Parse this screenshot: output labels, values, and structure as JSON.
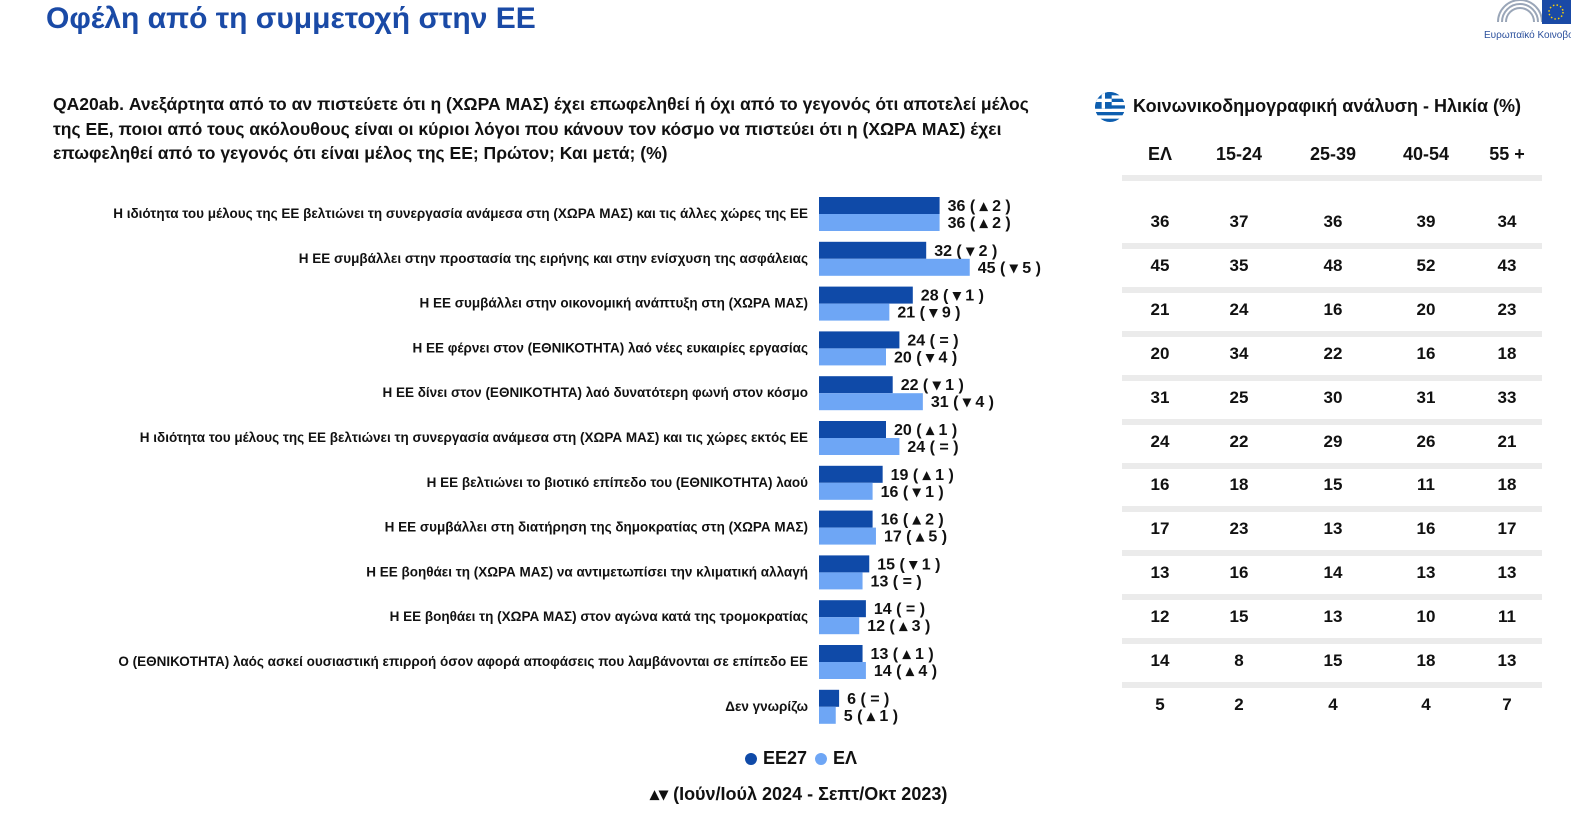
{
  "header": {
    "title": "Οφέλη από τη συμμετοχή στην ΕΕ",
    "logo_text": "Ευρωπαϊκό Κοινοβο"
  },
  "question": "QA20ab. Ανεξάρτητα από το αν πιστεύετε ότι η (ΧΩΡΑ ΜΑΣ) έχει επωφεληθεί ή όχι από το γεγονός ότι αποτελεί μέλος της ΕΕ, ποιοι από τους ακόλουθους είναι οι κύριοι λόγοι που κάνουν τον κόσμο να πιστεύει ότι η (ΧΩΡΑ ΜΑΣ) έχει επωφεληθεί από το γεγονός ότι είναι μέλος της ΕΕ; Πρώτον; Και μετά; (%)",
  "colors": {
    "eu27": "#0f4aa8",
    "el": "#6ea6f5",
    "title": "#1a4aa6"
  },
  "chart_data": {
    "type": "bar",
    "orientation": "horizontal",
    "categories": [
      "Η ιδιότητα του μέλους της ΕΕ βελτιώνει τη συνεργασία ανάμεσα στη (ΧΩΡΑ ΜΑΣ) και τις άλλες χώρες της ΕΕ",
      "Η ΕΕ συμβάλλει στην προστασία της ειρήνης και στην ενίσχυση της ασφάλειας",
      "Η ΕΕ συμβάλλει στην οικονομική ανάπτυξη στη (ΧΩΡΑ ΜΑΣ)",
      "Η ΕΕ φέρνει στον (ΕΘΝΙΚΟΤΗΤΑ) λαό νέες ευκαιρίες εργασίας",
      "Η ΕΕ δίνει στον (ΕΘΝΙΚΟΤΗΤΑ) λαό δυνατότερη φωνή στον κόσμο",
      "Η ιδιότητα του μέλους της ΕΕ βελτιώνει τη συνεργασία ανάμεσα στη (ΧΩΡΑ ΜΑΣ) και τις χώρες εκτός ΕΕ",
      "Η ΕΕ βελτιώνει το βιοτικό επίπεδο του (ΕΘΝΙΚΟΤΗΤΑ) λαού",
      "Η ΕΕ συμβάλλει στη διατήρηση της δημοκρατίας στη (ΧΩΡΑ ΜΑΣ)",
      "Η ΕΕ βοηθάει τη (ΧΩΡΑ ΜΑΣ) να αντιμετωπίσει την κλιματική αλλαγή",
      "Η ΕΕ βοηθάει τη (ΧΩΡΑ ΜΑΣ) στον αγώνα κατά της τρομοκρατίας",
      "Ο (ΕΘΝΙΚΟΤΗΤΑ) λαός ασκεί ουσιαστική επιρροή όσον αφορά αποφάσεις που λαμβάνονται σε επίπεδο ΕΕ",
      "Δεν γνωρίζω"
    ],
    "series": [
      {
        "name": "ΕΕ27",
        "color": "#0f4aa8",
        "values": [
          36,
          32,
          28,
          24,
          22,
          20,
          19,
          16,
          15,
          14,
          13,
          6
        ],
        "labels": [
          "36 ( ▴ 2 )",
          "32 ( ▾ 2 )",
          "28 ( ▾ 1 )",
          "24 ( = )",
          "22 ( ▾ 1 )",
          "20 ( ▴ 1 )",
          "19 ( ▴ 1 )",
          "16 ( ▴ 2 )",
          "15 ( ▾ 1 )",
          "14 ( = )",
          "13 ( ▴ 1 )",
          "6 ( = )"
        ]
      },
      {
        "name": "ΕΛ",
        "color": "#6ea6f5",
        "values": [
          36,
          45,
          21,
          20,
          31,
          24,
          16,
          17,
          13,
          12,
          14,
          5
        ],
        "labels": [
          "36 ( ▴ 2 )",
          "45 ( ▾ 5 )",
          "21 ( ▾ 9 )",
          "20 ( ▾ 4 )",
          "31 ( ▾ 4 )",
          "24 ( = )",
          "16 ( ▾ 1 )",
          "17 ( ▴ 5 )",
          "13 ( = )",
          "12 ( ▴ 3 )",
          "14 ( ▴ 4 )",
          "5 ( ▴ 1 )"
        ]
      }
    ],
    "legend": [
      "ΕΕ27",
      "ΕΛ"
    ],
    "trend_note": "▴▾ (Ιούν/Ιούλ 2024 - Σεπτ/Οκτ 2023)"
  },
  "breakdown": {
    "title": "Κοινωνικοδημογραφική ανάλυση - Ηλικία (%)",
    "columns": [
      "ΕΛ",
      "15-24",
      "25-39",
      "40-54",
      "55 +"
    ],
    "rows": [
      [
        36,
        37,
        36,
        39,
        34
      ],
      [
        45,
        35,
        48,
        52,
        43
      ],
      [
        21,
        24,
        16,
        20,
        23
      ],
      [
        20,
        34,
        22,
        16,
        18
      ],
      [
        31,
        25,
        30,
        31,
        33
      ],
      [
        24,
        22,
        29,
        26,
        21
      ],
      [
        16,
        18,
        15,
        11,
        18
      ],
      [
        17,
        23,
        13,
        16,
        17
      ],
      [
        13,
        16,
        14,
        13,
        13
      ],
      [
        12,
        15,
        13,
        10,
        11
      ],
      [
        14,
        8,
        15,
        18,
        13
      ],
      [
        5,
        2,
        4,
        4,
        7
      ]
    ]
  }
}
